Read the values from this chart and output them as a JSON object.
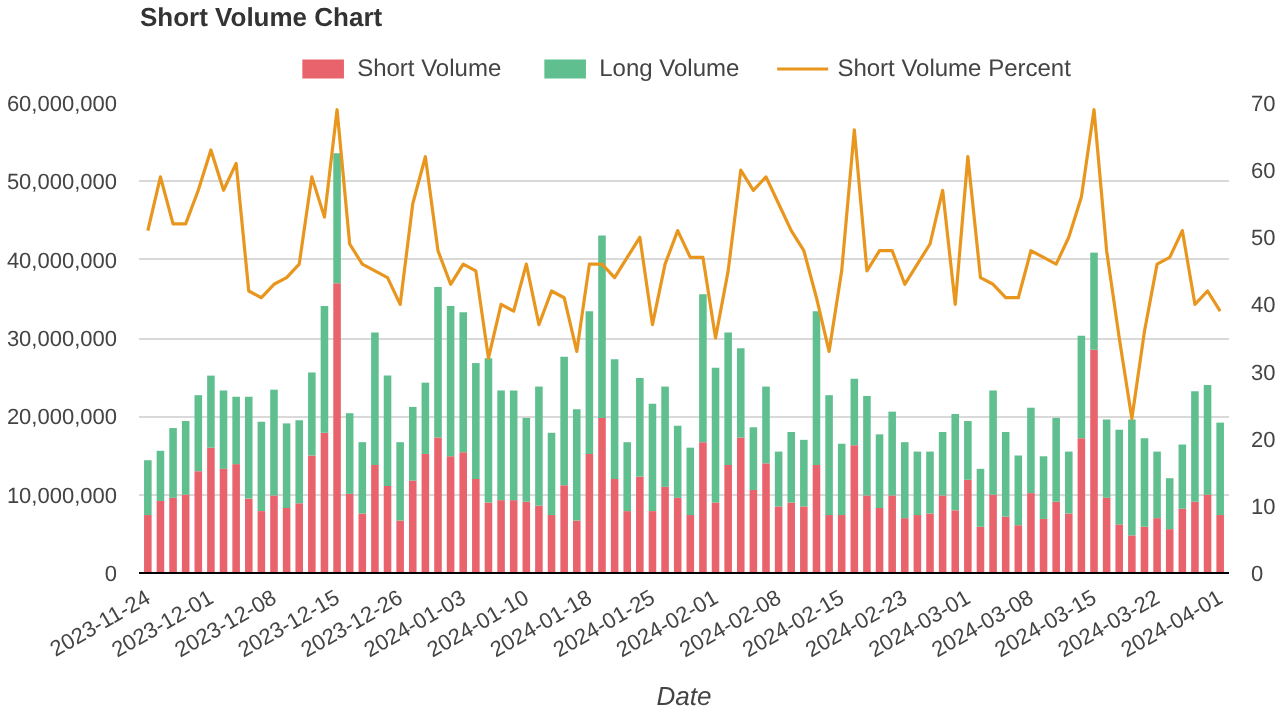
{
  "chart_data": {
    "type": "bar",
    "title": "Short Volume Chart",
    "xlabel": "Date",
    "stacked": true,
    "grid": "y",
    "legend": "top",
    "categories": [
      "2023-11-24",
      null,
      null,
      null,
      null,
      "2023-12-01",
      null,
      null,
      null,
      null,
      "2023-12-08",
      null,
      null,
      null,
      null,
      "2023-12-15",
      null,
      null,
      null,
      null,
      "2023-12-26",
      null,
      null,
      null,
      null,
      "2024-01-03",
      null,
      null,
      null,
      null,
      "2024-01-10",
      null,
      null,
      null,
      null,
      "2024-01-18",
      null,
      null,
      null,
      null,
      "2024-01-25",
      null,
      null,
      null,
      null,
      "2024-02-01",
      null,
      null,
      null,
      null,
      "2024-02-08",
      null,
      null,
      null,
      null,
      "2024-02-15",
      null,
      null,
      null,
      null,
      "2024-02-23",
      null,
      null,
      null,
      null,
      "2024-03-01",
      null,
      null,
      null,
      null,
      "2024-03-08",
      null,
      null,
      null,
      null,
      "2024-03-15",
      null,
      null,
      null,
      null,
      "2024-03-22",
      null,
      null,
      null,
      null,
      "2024-04-01"
    ],
    "ylim": [
      0,
      60000000
    ],
    "yticks": [
      0,
      {
        "value": 10000000,
        "label": "10,000,000"
      },
      {
        "value": 20000000,
        "label": "20,000,000"
      },
      {
        "value": 30000000,
        "label": "30,000,000"
      },
      {
        "value": 40000000,
        "label": "40,000,000"
      },
      {
        "value": 50000000,
        "label": "50,000,000"
      },
      {
        "value": 60000000,
        "label": "60,000,000"
      }
    ],
    "y2lim": [
      0,
      70
    ],
    "y2ticks": [
      0,
      10,
      20,
      30,
      40,
      50,
      60,
      70
    ],
    "series": [
      {
        "name": "Short Volume",
        "color": "#e8636b",
        "values": [
          7400000,
          9200000,
          9600000,
          10000000,
          13000000,
          16000000,
          13300000,
          13900000,
          9500000,
          7900000,
          9900000,
          8300000,
          8900000,
          15000000,
          17900000,
          37000000,
          10100000,
          7600000,
          13800000,
          11100000,
          6700000,
          11800000,
          15200000,
          17300000,
          14900000,
          15400000,
          12000000,
          9000000,
          9300000,
          9300000,
          9100000,
          8600000,
          7400000,
          11200000,
          6700000,
          15200000,
          19800000,
          12000000,
          7900000,
          12300000,
          7900000,
          11000000,
          9600000,
          7400000,
          16700000,
          9000000,
          13800000,
          17300000,
          10600000,
          14000000,
          8500000,
          9000000,
          8500000,
          13800000,
          7400000,
          7400000,
          16300000,
          9900000,
          8300000,
          9900000,
          7000000,
          7400000,
          7600000,
          9900000,
          8000000,
          11900000,
          5900000,
          10000000,
          7200000,
          6100000,
          10200000,
          6900000,
          9100000,
          7600000,
          17200000,
          28500000,
          9600000,
          6200000,
          4800000,
          5900000,
          7000000,
          5600000,
          8200000,
          9100000,
          10000000,
          7400000
        ]
      },
      {
        "name": "Long Volume",
        "color": "#5fbf8f",
        "values": [
          7000000,
          6400000,
          8900000,
          9400000,
          9700000,
          9200000,
          10000000,
          8600000,
          13000000,
          11400000,
          13500000,
          10800000,
          10600000,
          10600000,
          16200000,
          16600000,
          10300000,
          9100000,
          16900000,
          14100000,
          10000000,
          9400000,
          9100000,
          19200000,
          19200000,
          17900000,
          14800000,
          18400000,
          14000000,
          14000000,
          10700000,
          15200000,
          10500000,
          16400000,
          14200000,
          18200000,
          23300000,
          15300000,
          8800000,
          12600000,
          13700000,
          12800000,
          9200000,
          8600000,
          18900000,
          17200000,
          16900000,
          11400000,
          8000000,
          9800000,
          7000000,
          9000000,
          8500000,
          19600000,
          15300000,
          9100000,
          8500000,
          12700000,
          9400000,
          10700000,
          9700000,
          8100000,
          7900000,
          8100000,
          12300000,
          7500000,
          7400000,
          13300000,
          10800000,
          8900000,
          10900000,
          8000000,
          10700000,
          7900000,
          13100000,
          12400000,
          10000000,
          12100000,
          14800000,
          11300000,
          8500000,
          6500000,
          8200000,
          14100000,
          14000000,
          11800000
        ]
      },
      {
        "name": "Short Volume Percent",
        "type": "line",
        "axis": "y2",
        "color": "#e8961e",
        "values": [
          51,
          59,
          52,
          52,
          57,
          63,
          57,
          61,
          42,
          41,
          43,
          44,
          46,
          59,
          53,
          69,
          49,
          46,
          45,
          44,
          40,
          55,
          62,
          48,
          43,
          46,
          45,
          32,
          40,
          39,
          46,
          37,
          42,
          41,
          33,
          46,
          46,
          44,
          47,
          50,
          37,
          46,
          51,
          47,
          47,
          35,
          45,
          60,
          57,
          59,
          55,
          51,
          48,
          41,
          33,
          45,
          66,
          45,
          48,
          48,
          43,
          46,
          49,
          57,
          40,
          62,
          44,
          43,
          41,
          41,
          48,
          47,
          46,
          50,
          56,
          69,
          48,
          35,
          23,
          36,
          46,
          47,
          51,
          40,
          42,
          39
        ]
      }
    ]
  }
}
